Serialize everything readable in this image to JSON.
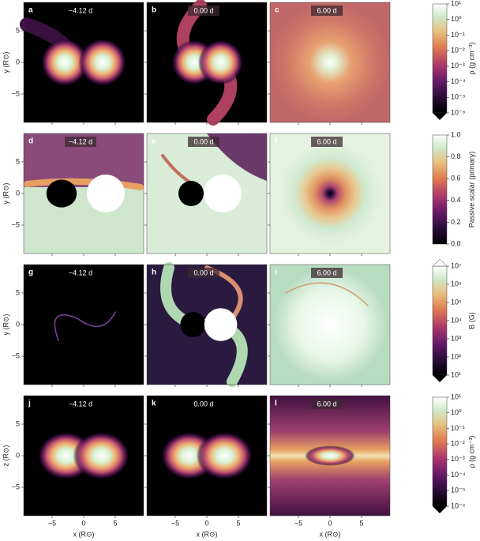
{
  "panels": [
    {
      "label": "a",
      "time": "−4.12 d"
    },
    {
      "label": "b",
      "time": "0.00 d"
    },
    {
      "label": "c",
      "time": "6.00 d"
    },
    {
      "label": "d",
      "time": "−4.12 d"
    },
    {
      "label": "e",
      "time": "0.00 d"
    },
    {
      "label": "f",
      "time": "6.00 d"
    },
    {
      "label": "g",
      "time": "−4.12 d"
    },
    {
      "label": "h",
      "time": "0.00 d"
    },
    {
      "label": "i",
      "time": "6.00 d"
    },
    {
      "label": "j",
      "time": "−4.12 d"
    },
    {
      "label": "k",
      "time": "0.00 d"
    },
    {
      "label": "l",
      "time": "6.00 d"
    }
  ],
  "axes": {
    "row_labels": [
      "y (R⊙)",
      "y (R⊙)",
      "y (R⊙)",
      "z (R⊙)"
    ],
    "x_label": "x (R⊙)",
    "ticks": [
      "5",
      "0",
      "−5"
    ],
    "x_ticks": [
      "−5",
      "0",
      "5"
    ]
  },
  "colorbars": [
    {
      "label": "ρ (g cm⁻³)",
      "ticks": [
        "10¹",
        "10⁰",
        "10⁻¹",
        "10⁻²",
        "10⁻³",
        "10⁻⁴",
        "10⁻⁵",
        "10⁻⁶"
      ]
    },
    {
      "label": "Passive scalar (primary)",
      "ticks": [
        "1.0",
        "0.8",
        "0.6",
        "0.4",
        "0.2",
        "0.0"
      ]
    },
    {
      "label": "B (G)",
      "ticks": [
        "10⁷",
        "10⁶",
        "10⁵",
        "10⁴",
        "10³",
        "10²",
        "10¹"
      ]
    },
    {
      "label": "ρ (g cm⁻³)",
      "ticks": [
        "10¹",
        "10⁰",
        "10⁻¹",
        "10⁻²",
        "10⁻³",
        "10⁻⁴",
        "10⁻⁵",
        "10⁻⁶"
      ]
    }
  ]
}
